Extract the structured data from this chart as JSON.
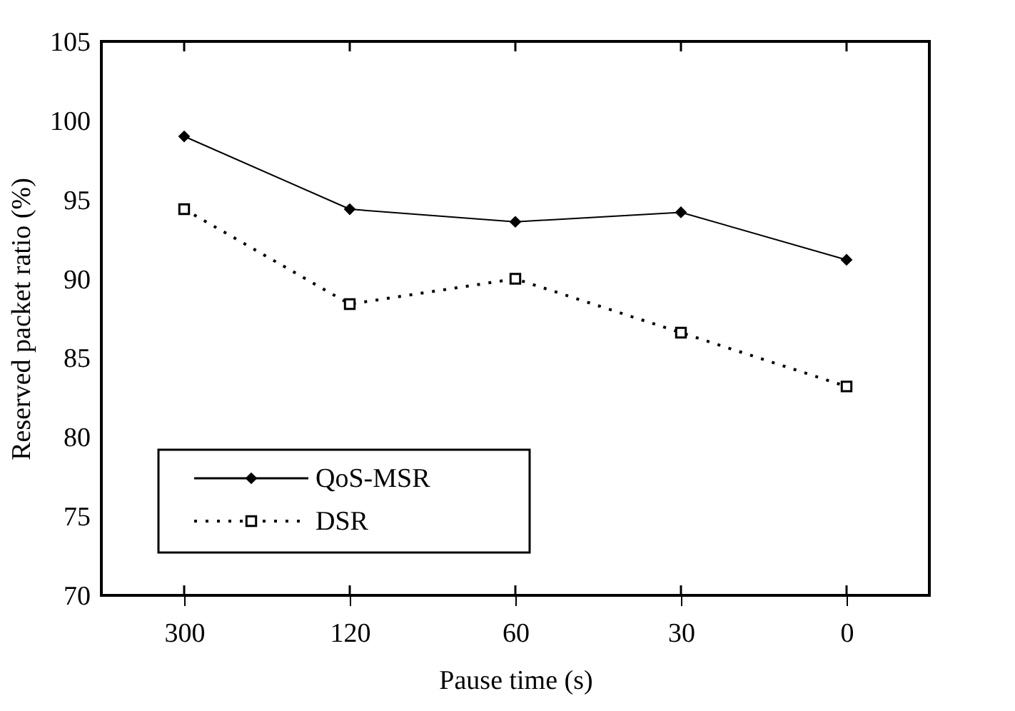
{
  "chart_data": {
    "type": "line",
    "xlabel": "Pause time (s)",
    "ylabel": "Reserved packet ratio (%)",
    "categories": [
      "300",
      "120",
      "60",
      "30",
      "0"
    ],
    "ylim": [
      70,
      105
    ],
    "yticks": [
      70,
      75,
      80,
      85,
      90,
      95,
      100,
      105
    ],
    "grid": false,
    "legend": "bottom left",
    "series": [
      {
        "name": "QoS-MSR",
        "color": "#000000",
        "marker": "diamond",
        "line_style": "solid",
        "values": [
          99.0,
          94.4,
          93.6,
          94.2,
          91.2
        ]
      },
      {
        "name": "DSR",
        "color": "#000000",
        "marker": "square",
        "line_style": "dotted",
        "values": [
          94.4,
          88.4,
          90.0,
          86.6,
          83.2
        ]
      }
    ]
  }
}
